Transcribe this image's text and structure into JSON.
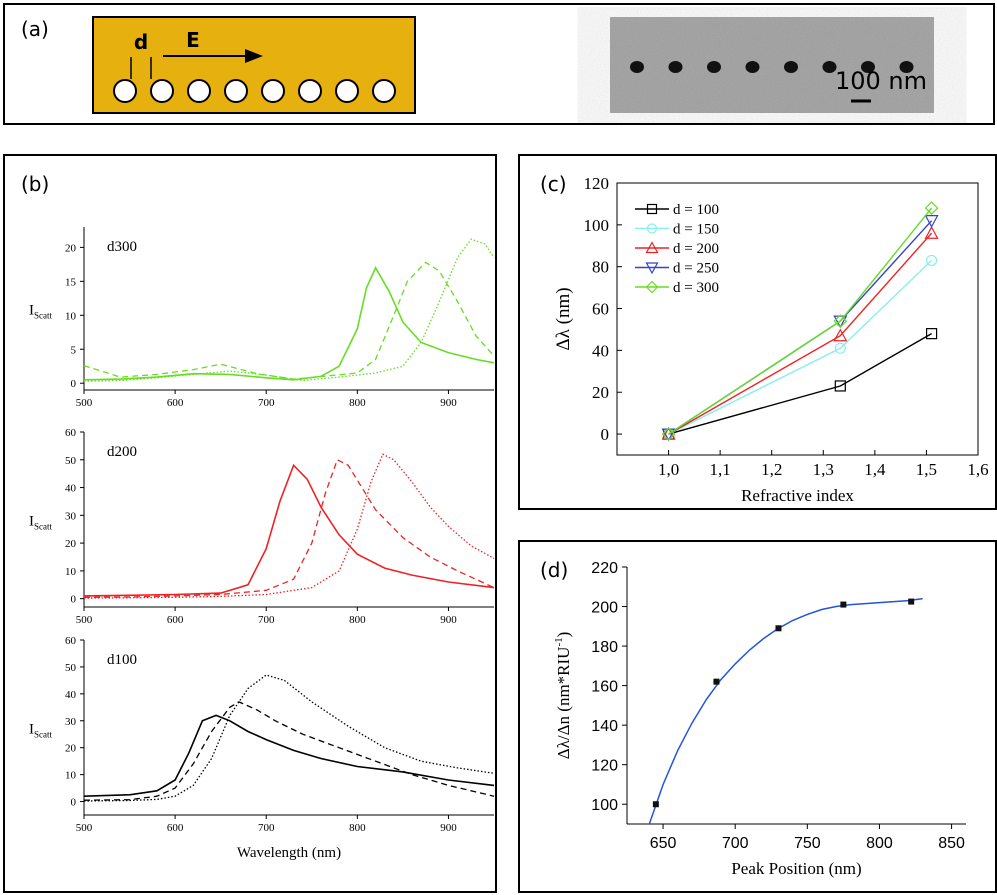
{
  "panel_a": {
    "label": "(a)",
    "d_label": "d",
    "e_label": "E",
    "scalebar_label": "100 nm",
    "colors": {
      "substrate": "#E6B00E",
      "holes": "#FFFFFF"
    }
  },
  "chart_data": [
    {
      "id": "b1",
      "panel_label": "(b)",
      "type": "line",
      "title": "d300",
      "xlabel": "",
      "ylabel_main": "I",
      "ylabel_sub": "Scatt",
      "xlim": [
        500,
        950
      ],
      "ylim": [
        -1,
        23
      ],
      "xticks": [
        500,
        600,
        700,
        800,
        900
      ],
      "yticks": [
        0,
        5,
        10,
        15,
        20
      ],
      "color": "#66DD22",
      "series": [
        {
          "style": "solid",
          "x": [
            500,
            540,
            580,
            620,
            660,
            700,
            730,
            760,
            780,
            800,
            810,
            820,
            835,
            850,
            870,
            900,
            930,
            950
          ],
          "y": [
            0.5,
            0.6,
            0.9,
            1.4,
            1.3,
            0.8,
            0.5,
            1.0,
            2.5,
            8.0,
            14.0,
            17.0,
            13.5,
            9.0,
            6.0,
            4.5,
            3.5,
            3.0
          ]
        },
        {
          "style": "dashed",
          "x": [
            500,
            540,
            580,
            620,
            650,
            690,
            730,
            770,
            800,
            820,
            840,
            855,
            875,
            890,
            910,
            930,
            950
          ],
          "y": [
            2.6,
            0.9,
            1.3,
            2.0,
            2.8,
            1.4,
            0.6,
            1.1,
            1.5,
            3.5,
            10.0,
            15.0,
            17.8,
            16.5,
            12.0,
            7.0,
            4.0
          ]
        },
        {
          "style": "dotted",
          "x": [
            500,
            540,
            580,
            620,
            660,
            700,
            740,
            780,
            820,
            850,
            870,
            890,
            910,
            925,
            940,
            950
          ],
          "y": [
            0.3,
            0.4,
            0.8,
            1.3,
            1.8,
            1.2,
            0.4,
            0.9,
            1.5,
            2.5,
            6.0,
            12.0,
            18.5,
            21.2,
            20.5,
            18.5
          ]
        }
      ]
    },
    {
      "id": "b2",
      "type": "line",
      "title": "d200",
      "xlabel": "",
      "ylabel_main": "I",
      "ylabel_sub": "Scatt",
      "xlim": [
        500,
        950
      ],
      "ylim": [
        -3,
        60
      ],
      "xticks": [
        500,
        600,
        700,
        800,
        900
      ],
      "yticks": [
        0,
        10,
        20,
        30,
        40,
        50,
        60
      ],
      "color": "#EE2222",
      "series": [
        {
          "style": "solid",
          "x": [
            500,
            550,
            600,
            650,
            680,
            700,
            715,
            730,
            745,
            760,
            780,
            800,
            830,
            860,
            900,
            950
          ],
          "y": [
            1.0,
            1.2,
            1.5,
            2.0,
            5.0,
            18.0,
            35.0,
            48.0,
            43.0,
            33.0,
            23.0,
            16.0,
            11.0,
            8.5,
            6.0,
            4.0
          ]
        },
        {
          "style": "dashed",
          "x": [
            500,
            550,
            600,
            650,
            700,
            730,
            750,
            765,
            778,
            790,
            805,
            820,
            850,
            880,
            910,
            950
          ],
          "y": [
            0.5,
            0.6,
            1.0,
            1.5,
            3.0,
            7.0,
            20.0,
            38.0,
            50.0,
            48.0,
            40.0,
            32.0,
            22.0,
            15.0,
            10.0,
            4.0
          ]
        },
        {
          "style": "dotted",
          "x": [
            500,
            550,
            600,
            650,
            700,
            750,
            780,
            800,
            815,
            828,
            840,
            860,
            880,
            900,
            925,
            950
          ],
          "y": [
            0.2,
            0.3,
            0.5,
            0.8,
            1.5,
            4.0,
            10.0,
            25.0,
            42.0,
            52.0,
            50.0,
            42.0,
            33.0,
            26.0,
            19.0,
            14.5
          ]
        }
      ]
    },
    {
      "id": "b3",
      "type": "line",
      "title": "d100",
      "xlabel": "Wavelength (nm)",
      "ylabel_main": "I",
      "ylabel_sub": "Scatt",
      "xlim": [
        500,
        950
      ],
      "ylim": [
        -5,
        60
      ],
      "xticks": [
        500,
        600,
        700,
        800,
        900
      ],
      "yticks": [
        0,
        10,
        20,
        30,
        40,
        50,
        60
      ],
      "color": "#000000",
      "series": [
        {
          "style": "solid",
          "x": [
            500,
            550,
            580,
            600,
            615,
            630,
            645,
            660,
            680,
            700,
            730,
            760,
            800,
            850,
            900,
            950
          ],
          "y": [
            2.0,
            2.5,
            4.0,
            8.0,
            18.0,
            30.0,
            32.0,
            30.0,
            26.0,
            23.0,
            19.0,
            16.0,
            13.0,
            11.0,
            8.0,
            6.0
          ]
        },
        {
          "style": "dashed",
          "x": [
            500,
            550,
            580,
            600,
            620,
            640,
            660,
            670,
            690,
            710,
            740,
            780,
            820,
            860,
            900,
            950
          ],
          "y": [
            0.5,
            0.7,
            2.0,
            5.0,
            14.0,
            26.0,
            35.0,
            37.0,
            34.0,
            30.0,
            25.0,
            20.0,
            15.0,
            10.0,
            6.0,
            2.0
          ]
        },
        {
          "style": "dotted",
          "x": [
            500,
            550,
            580,
            600,
            620,
            640,
            660,
            680,
            700,
            720,
            750,
            790,
            830,
            870,
            910,
            950
          ],
          "y": [
            0.2,
            0.4,
            0.8,
            2.0,
            6.0,
            16.0,
            32.0,
            42.0,
            47.0,
            45.0,
            37.0,
            28.0,
            20.0,
            15.0,
            12.5,
            10.5
          ]
        }
      ]
    },
    {
      "id": "c",
      "panel_label": "(c)",
      "type": "line",
      "title": "",
      "xlabel": "Refractive index",
      "ylabel": "Δλ (nm)",
      "xlim": [
        0.9,
        1.6
      ],
      "ylim": [
        -10,
        120
      ],
      "xticks": [
        "1,0",
        "1,1",
        "1,2",
        "1,3",
        "1,4",
        "1,5",
        "1,6"
      ],
      "xtick_values": [
        1.0,
        1.1,
        1.2,
        1.3,
        1.4,
        1.5,
        1.6
      ],
      "yticks": [
        0,
        20,
        40,
        60,
        80,
        100,
        120
      ],
      "x": [
        1.0,
        1.333,
        1.51
      ],
      "legend_position": "top-left",
      "series": [
        {
          "name": "d = 100",
          "marker": "square",
          "color": "#000000",
          "values": [
            0,
            23,
            48
          ]
        },
        {
          "name": "d = 150",
          "marker": "circle",
          "color": "#88EEEE",
          "values": [
            0,
            41,
            83
          ]
        },
        {
          "name": "d = 200",
          "marker": "triangle-up",
          "color": "#EE2222",
          "values": [
            0,
            47,
            96
          ]
        },
        {
          "name": "d = 250",
          "marker": "triangle-down",
          "color": "#3344CC",
          "values": [
            0,
            54,
            102
          ]
        },
        {
          "name": "d = 300",
          "marker": "diamond",
          "color": "#66DD22",
          "values": [
            0,
            54,
            108
          ]
        }
      ]
    },
    {
      "id": "d",
      "panel_label": "(d)",
      "type": "scatter",
      "title": "",
      "xlabel": "Peak Position (nm)",
      "ylabel": "Δλ/Δn (nm*RIU",
      "ylabel_sup": "-1",
      "ylabel_end": ")",
      "xlim": [
        625,
        860
      ],
      "ylim": [
        90,
        220
      ],
      "xticks": [
        650,
        700,
        750,
        800,
        850
      ],
      "yticks": [
        100,
        120,
        140,
        160,
        180,
        200,
        220
      ],
      "points": {
        "x": [
          645,
          687,
          730,
          775,
          822
        ],
        "y": [
          100,
          162,
          189,
          201,
          202.5
        ]
      },
      "fit": {
        "color": "#2255DD",
        "x": [
          640,
          650,
          660,
          670,
          680,
          690,
          700,
          710,
          720,
          730,
          740,
          750,
          760,
          770,
          780,
          790,
          800,
          810,
          820,
          830
        ],
        "y": [
          89,
          110,
          127,
          141,
          153,
          163,
          171,
          178,
          184,
          189,
          193,
          196,
          198.5,
          200,
          201,
          201.5,
          202,
          202.5,
          203,
          204
        ]
      }
    }
  ]
}
